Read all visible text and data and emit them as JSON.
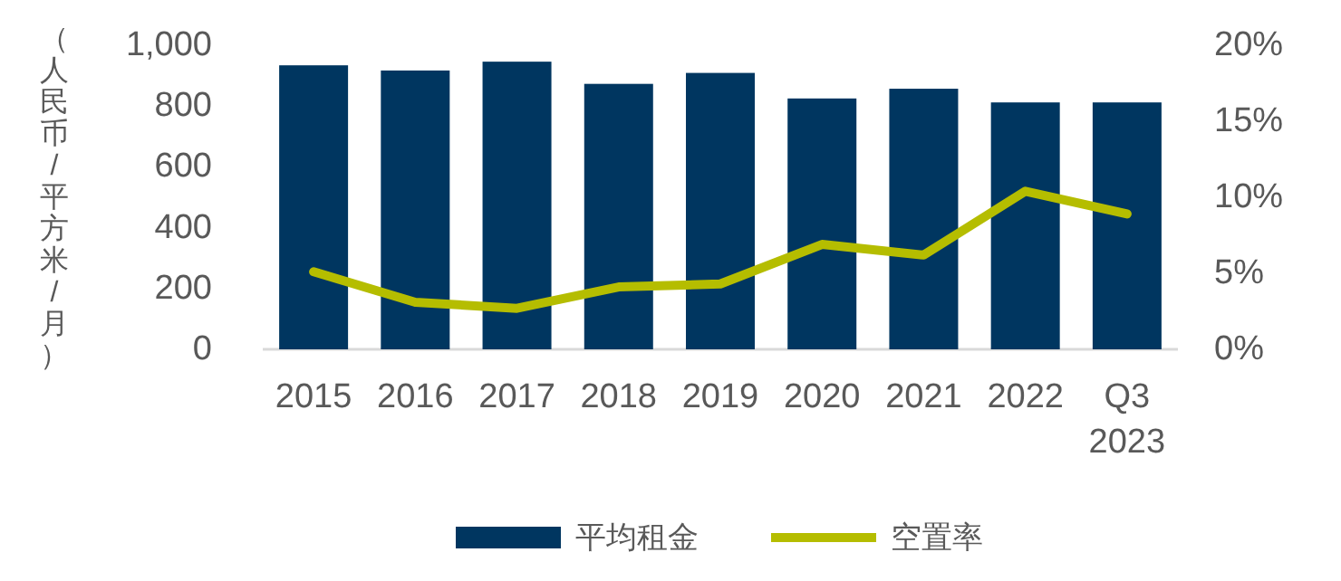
{
  "chart_data": {
    "type": "bar",
    "ylabel": "（人民币/平方米/月）",
    "categories": [
      "2015",
      "2016",
      "2017",
      "2018",
      "2019",
      "2020",
      "2021",
      "2022",
      "Q3 2023"
    ],
    "series": [
      {
        "name": "平均租金",
        "color": "#003660",
        "values": [
          934,
          917,
          946,
          873,
          909,
          825,
          857,
          812,
          812
        ]
      },
      {
        "name": "空置率",
        "type": "line",
        "axis": "y2",
        "color": "#b5bd00",
        "values": [
          5.1,
          3.1,
          2.7,
          4.1,
          4.3,
          6.9,
          6.2,
          10.4,
          8.9
        ]
      }
    ],
    "ylim": [
      0,
      1000
    ],
    "yticks": [
      0,
      200,
      400,
      600,
      800,
      {
        "value": 1000,
        "label": "1,000"
      }
    ],
    "y2lim": [
      0,
      20
    ],
    "y2ticks": [
      {
        "value": 0,
        "label": "0%"
      },
      {
        "value": 5,
        "label": "5%"
      },
      {
        "value": 10,
        "label": "10%"
      },
      {
        "value": 15,
        "label": "15%"
      },
      {
        "value": 20,
        "label": "20%"
      }
    ],
    "legend": "bottom",
    "grid": false,
    "marker": "none",
    "line_style": "solid"
  }
}
